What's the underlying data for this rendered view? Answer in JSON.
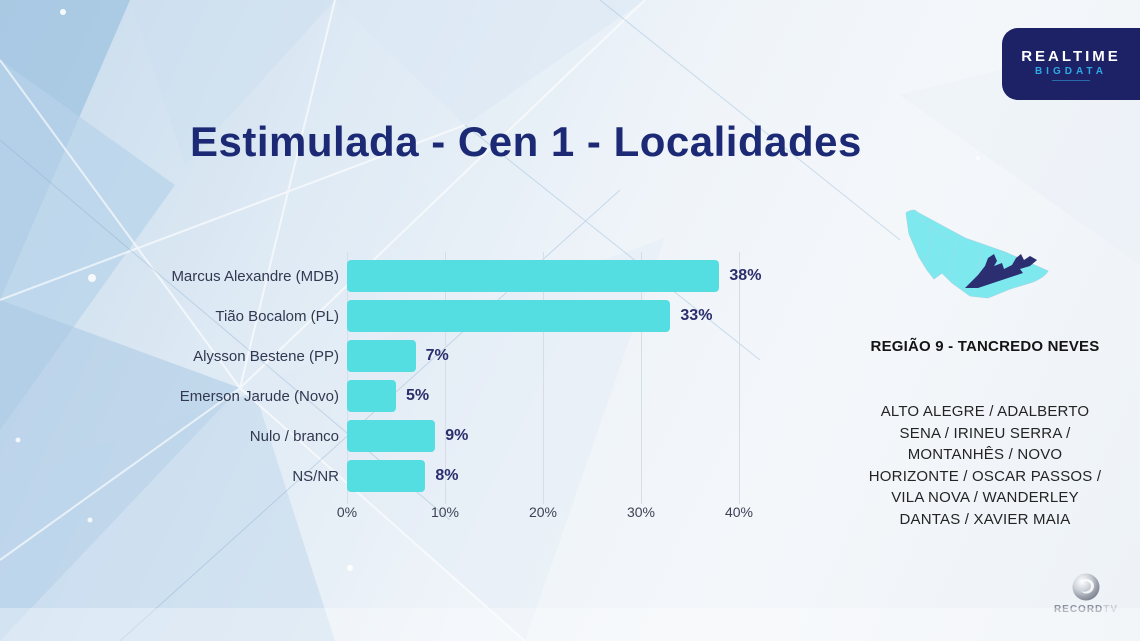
{
  "brand": {
    "line1": "REALTIME",
    "line2": "BIGDATA",
    "box_color": "#1d2166",
    "accent_color": "#2fa9e3"
  },
  "chart_data": {
    "type": "bar",
    "orientation": "horizontal",
    "title": "Estimulada - Cen 1 - Localidades",
    "categories": [
      "Marcus Alexandre (MDB)",
      "Tião Bocalom (PL)",
      "Alysson Bestene (PP)",
      "Emerson Jarude (Novo)",
      "Nulo / branco",
      "NS/NR"
    ],
    "values": [
      38,
      33,
      7,
      5,
      9,
      8
    ],
    "value_labels": [
      "38%",
      "33%",
      "7%",
      "5%",
      "9%",
      "8%"
    ],
    "x_ticks": [
      "0%",
      "10%",
      "20%",
      "30%",
      "40%"
    ],
    "x_tick_values": [
      0,
      10,
      20,
      30,
      40
    ],
    "xlim": [
      0,
      40
    ],
    "grid": true,
    "legend": false,
    "bar_color": "#55dee2",
    "value_color": "#2b2e6d"
  },
  "region": {
    "title": "REGIÃO 9 - TANCREDO NEVES",
    "localities": "ALTO ALEGRE / ADALBERTO SENA / IRINEU SERRA / MONTANHÊS / NOVO HORIZONTE / OSCAR PASSOS / VILA NOVA / WANDERLEY DANTAS / XAVIER MAIA"
  },
  "map": {
    "fill_color": "#7de9ef",
    "highlight_color": "#2b2f72"
  },
  "footer": {
    "record": "RECORD",
    "tv": "TV"
  }
}
